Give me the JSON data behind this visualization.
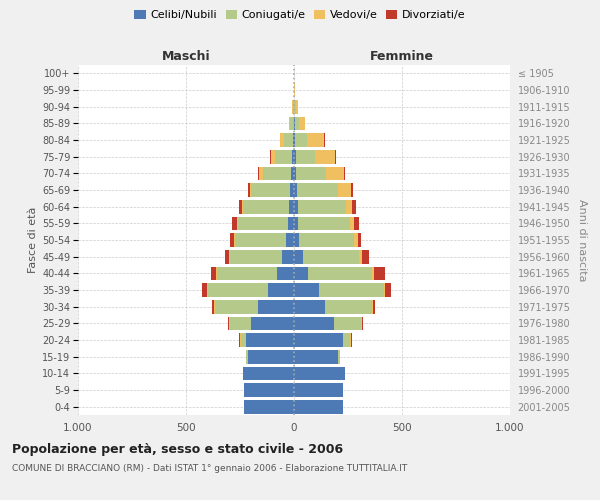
{
  "age_groups": [
    "0-4",
    "5-9",
    "10-14",
    "15-19",
    "20-24",
    "25-29",
    "30-34",
    "35-39",
    "40-44",
    "45-49",
    "50-54",
    "55-59",
    "60-64",
    "65-69",
    "70-74",
    "75-79",
    "80-84",
    "85-89",
    "90-94",
    "95-99",
    "100+"
  ],
  "birth_years": [
    "2001-2005",
    "1996-2000",
    "1991-1995",
    "1986-1990",
    "1981-1985",
    "1976-1980",
    "1971-1975",
    "1966-1970",
    "1961-1965",
    "1956-1960",
    "1951-1955",
    "1946-1950",
    "1941-1945",
    "1936-1940",
    "1931-1935",
    "1926-1930",
    "1921-1925",
    "1916-1920",
    "1911-1915",
    "1906-1910",
    "≤ 1905"
  ],
  "males": {
    "celibi": [
      230,
      230,
      235,
      215,
      220,
      200,
      165,
      120,
      80,
      55,
      35,
      30,
      25,
      20,
      12,
      8,
      5,
      2,
      0,
      0,
      0
    ],
    "coniugati": [
      0,
      0,
      2,
      5,
      25,
      95,
      200,
      280,
      275,
      240,
      240,
      230,
      210,
      180,
      130,
      80,
      40,
      15,
      5,
      2,
      0
    ],
    "vedovi": [
      0,
      0,
      0,
      0,
      5,
      5,
      5,
      5,
      5,
      5,
      5,
      5,
      5,
      5,
      20,
      20,
      20,
      5,
      2,
      0,
      0
    ],
    "divorziati": [
      0,
      0,
      0,
      0,
      5,
      5,
      10,
      20,
      25,
      20,
      15,
      20,
      15,
      10,
      5,
      5,
      0,
      0,
      0,
      0,
      0
    ]
  },
  "females": {
    "nubili": [
      225,
      225,
      235,
      205,
      225,
      185,
      145,
      115,
      65,
      40,
      25,
      20,
      20,
      15,
      10,
      8,
      5,
      3,
      2,
      0,
      0
    ],
    "coniugate": [
      0,
      0,
      2,
      8,
      35,
      125,
      215,
      300,
      295,
      260,
      255,
      240,
      220,
      190,
      140,
      90,
      55,
      20,
      8,
      2,
      0
    ],
    "vedove": [
      0,
      0,
      0,
      0,
      5,
      5,
      5,
      5,
      10,
      15,
      15,
      20,
      30,
      60,
      80,
      90,
      80,
      30,
      8,
      2,
      0
    ],
    "divorziate": [
      0,
      0,
      0,
      0,
      5,
      5,
      10,
      30,
      50,
      30,
      15,
      20,
      15,
      10,
      5,
      5,
      5,
      0,
      0,
      0,
      0
    ]
  },
  "colors": {
    "celibi_nubili": "#4d7ab5",
    "coniugati": "#b5c98a",
    "vedovi": "#f0c060",
    "divorziati": "#c0392b"
  },
  "title": "Popolazione per età, sesso e stato civile - 2006",
  "subtitle": "COMUNE DI BRACCIANO (RM) - Dati ISTAT 1° gennaio 2006 - Elaborazione TUTTITALIA.IT",
  "xlabel_left": "Maschi",
  "xlabel_right": "Femmine",
  "ylabel_left": "Fasce di età",
  "ylabel_right": "Anni di nascita",
  "xlim": 1000,
  "background_color": "#f0f0f0",
  "plot_background": "#ffffff"
}
